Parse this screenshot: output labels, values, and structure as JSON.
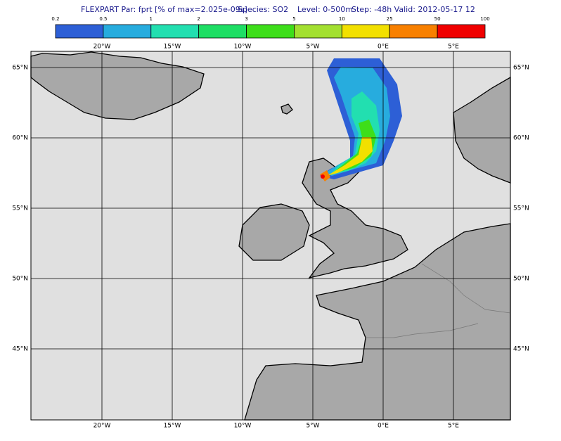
{
  "header": {
    "title": "FLEXPART Par: fprt  [% of max=2.025e-09s]",
    "species": "Species: SO2",
    "level": "Level: 0-500m",
    "step": "Step: -48h Valid: 2012-05-17 12"
  },
  "colorbar": {
    "labels": [
      "0.2",
      "0.5",
      "1",
      "2",
      "3",
      "5",
      "10",
      "25",
      "50",
      "100"
    ],
    "colors": [
      "#2d5fd6",
      "#27acde",
      "#22dfb0",
      "#1ede64",
      "#3ede1a",
      "#a3e030",
      "#f2e000",
      "#f88000",
      "#f00000"
    ]
  },
  "map": {
    "lon_labels": [
      "20°W",
      "15°W",
      "10°W",
      "5°W",
      "0°E",
      "5°E"
    ],
    "lat_labels": [
      "65°N",
      "60°N",
      "55°N",
      "50°N",
      "45°N"
    ]
  }
}
